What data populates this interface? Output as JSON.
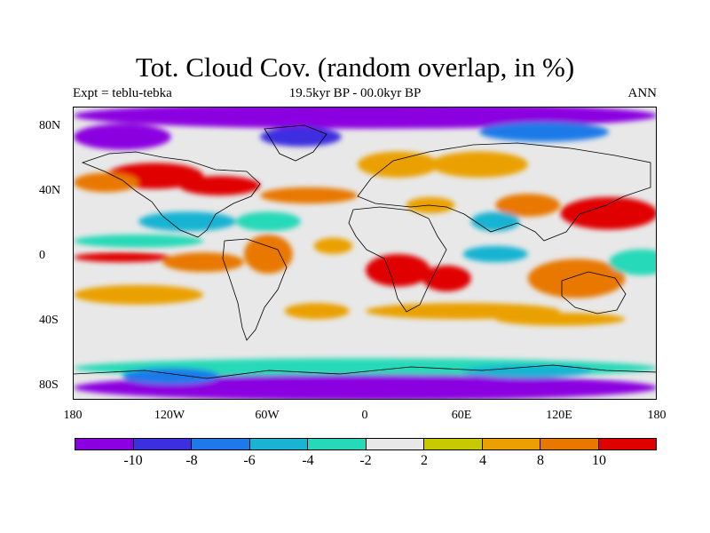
{
  "title": "Tot. Cloud Cov. (random overlap, in %)",
  "left_label": "Expt = teblu-tebka",
  "center_label": "19.5kyr BP - 00.0kyr BP",
  "right_label": "ANN",
  "chart_data": {
    "type": "heatmap",
    "projection": "cylindrical-equidistant",
    "xlim": [
      -180,
      180
    ],
    "ylim": [
      -90,
      90
    ],
    "x_ticks": [
      {
        "value": -180,
        "label": "180"
      },
      {
        "value": -120,
        "label": "120W"
      },
      {
        "value": -60,
        "label": "60W"
      },
      {
        "value": 0,
        "label": "0"
      },
      {
        "value": 60,
        "label": "60E"
      },
      {
        "value": 120,
        "label": "120E"
      },
      {
        "value": 180,
        "label": "180"
      }
    ],
    "y_ticks": [
      {
        "value": 80,
        "label": "80N"
      },
      {
        "value": 40,
        "label": "40N"
      },
      {
        "value": 0,
        "label": "0"
      },
      {
        "value": -40,
        "label": "40S"
      },
      {
        "value": -80,
        "label": "80S"
      }
    ],
    "levels": [
      -10,
      -8,
      -6,
      -4,
      -2,
      2,
      4,
      8,
      10
    ],
    "level_labels": [
      "-10",
      "-8",
      "-6",
      "-4",
      "-2",
      "2",
      "4",
      "8",
      "10"
    ],
    "colors": [
      "#8b00e0",
      "#3c2fe0",
      "#1e7ae8",
      "#19b4d2",
      "#26d9b8",
      "#e8e8e8",
      "#c8c800",
      "#eaa000",
      "#e87800",
      "#e00000"
    ],
    "field_regions": [
      {
        "lon": 0,
        "lat": 85,
        "value": -11,
        "rlon": 180,
        "rlat": 8
      },
      {
        "lon": -150,
        "lat": 72,
        "value": -11,
        "rlon": 30,
        "rlat": 8
      },
      {
        "lon": -40,
        "lat": 72,
        "value": -9,
        "rlon": 25,
        "rlat": 6
      },
      {
        "lon": 110,
        "lat": 75,
        "value": -7,
        "rlon": 40,
        "rlat": 6
      },
      {
        "lon": -130,
        "lat": 48,
        "value": 11,
        "rlon": 30,
        "rlat": 8
      },
      {
        "lon": -160,
        "lat": 44,
        "value": 9,
        "rlon": 20,
        "rlat": 6
      },
      {
        "lon": -90,
        "lat": 42,
        "value": 10,
        "rlon": 25,
        "rlat": 6
      },
      {
        "lon": -35,
        "lat": 36,
        "value": 9,
        "rlon": 30,
        "rlat": 5
      },
      {
        "lon": 20,
        "lat": 55,
        "value": 6,
        "rlon": 25,
        "rlat": 8
      },
      {
        "lon": 70,
        "lat": 55,
        "value": 5,
        "rlon": 30,
        "rlat": 8
      },
      {
        "lon": 40,
        "lat": 30,
        "value": 7,
        "rlon": 15,
        "rlat": 5
      },
      {
        "lon": 150,
        "lat": 25,
        "value": 11,
        "rlon": 30,
        "rlat": 10
      },
      {
        "lon": 100,
        "lat": 30,
        "value": 9,
        "rlon": 20,
        "rlat": 7
      },
      {
        "lon": 80,
        "lat": 20,
        "value": -5,
        "rlon": 15,
        "rlat": 6
      },
      {
        "lon": -110,
        "lat": 20,
        "value": -5,
        "rlon": 30,
        "rlat": 6
      },
      {
        "lon": -60,
        "lat": 20,
        "value": -4,
        "rlon": 20,
        "rlat": 6
      },
      {
        "lon": -140,
        "lat": 8,
        "value": -4,
        "rlon": 40,
        "rlat": 4
      },
      {
        "lon": -150,
        "lat": -2,
        "value": 11,
        "rlon": 30,
        "rlat": 3
      },
      {
        "lon": -100,
        "lat": -5,
        "value": 8,
        "rlon": 25,
        "rlat": 6
      },
      {
        "lon": -60,
        "lat": 0,
        "value": 9,
        "rlon": 15,
        "rlat": 12
      },
      {
        "lon": -20,
        "lat": 5,
        "value": 7,
        "rlon": 12,
        "rlat": 5
      },
      {
        "lon": 20,
        "lat": -10,
        "value": 11,
        "rlon": 20,
        "rlat": 10
      },
      {
        "lon": 50,
        "lat": -15,
        "value": 10,
        "rlon": 15,
        "rlat": 8
      },
      {
        "lon": 80,
        "lat": 0,
        "value": -6,
        "rlon": 20,
        "rlat": 5
      },
      {
        "lon": 130,
        "lat": -15,
        "value": 8,
        "rlon": 30,
        "rlat": 12
      },
      {
        "lon": 170,
        "lat": -5,
        "value": -4,
        "rlon": 20,
        "rlat": 8
      },
      {
        "lon": -140,
        "lat": -25,
        "value": 6,
        "rlon": 40,
        "rlat": 6
      },
      {
        "lon": 60,
        "lat": -35,
        "value": 5,
        "rlon": 60,
        "rlat": 5
      },
      {
        "lon": 120,
        "lat": -40,
        "value": 4,
        "rlon": 40,
        "rlat": 4
      },
      {
        "lon": -30,
        "lat": -35,
        "value": 4,
        "rlon": 20,
        "rlat": 5
      },
      {
        "lon": 0,
        "lat": -70,
        "value": -3,
        "rlon": 180,
        "rlat": 6
      },
      {
        "lon": 0,
        "lat": -82,
        "value": -11,
        "rlon": 180,
        "rlat": 8
      },
      {
        "lon": -120,
        "lat": -75,
        "value": -8,
        "rlon": 30,
        "rlat": 5
      },
      {
        "lon": 100,
        "lat": -72,
        "value": -6,
        "rlon": 40,
        "rlat": 4
      }
    ]
  }
}
